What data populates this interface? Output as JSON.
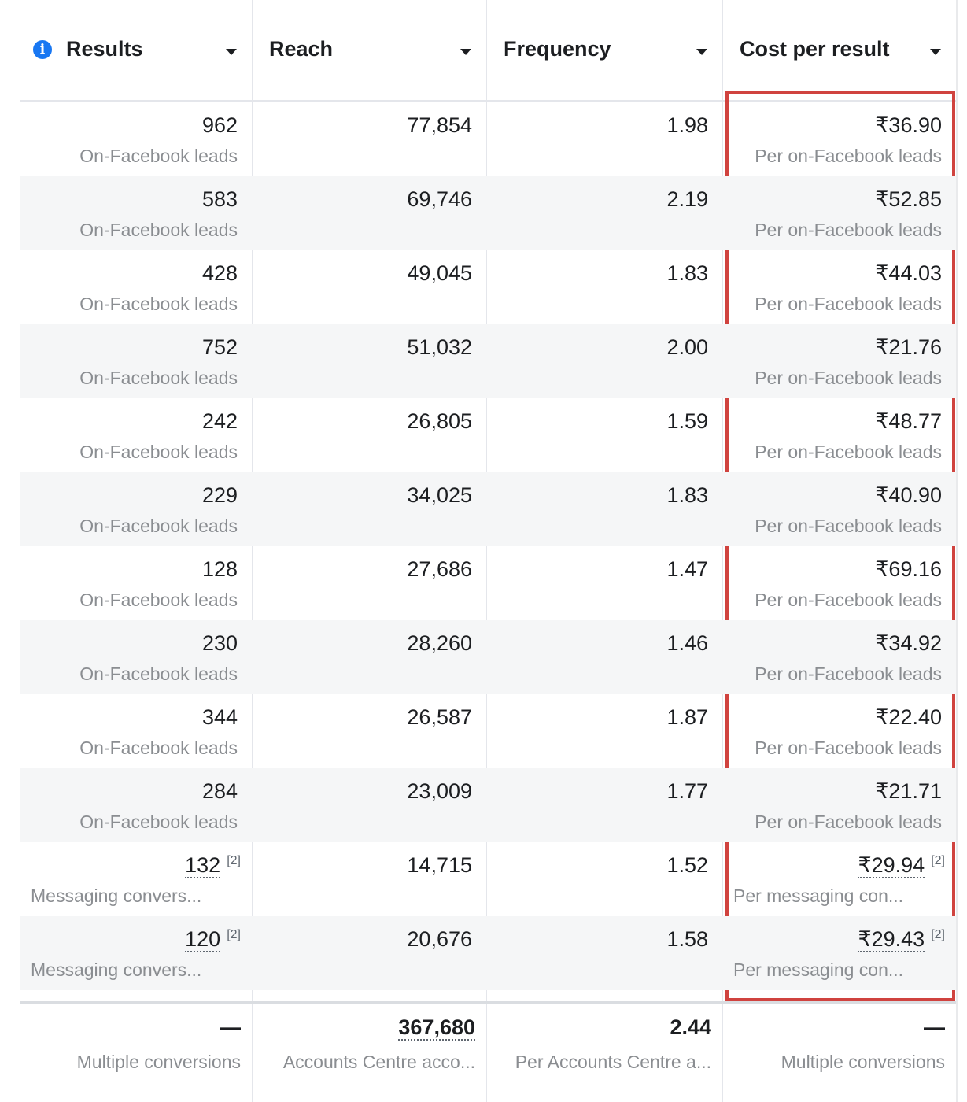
{
  "header": {
    "columns": [
      "Results",
      "Reach",
      "Frequency",
      "Cost per result"
    ]
  },
  "table": {
    "rows": [
      {
        "results": "962",
        "results_sub": "On-Facebook leads",
        "reach": "77,854",
        "frequency": "1.98",
        "cost": "₹36.90",
        "cost_sub": "Per on-Facebook leads"
      },
      {
        "results": "583",
        "results_sub": "On-Facebook leads",
        "reach": "69,746",
        "frequency": "2.19",
        "cost": "₹52.85",
        "cost_sub": "Per on-Facebook leads"
      },
      {
        "results": "428",
        "results_sub": "On-Facebook leads",
        "reach": "49,045",
        "frequency": "1.83",
        "cost": "₹44.03",
        "cost_sub": "Per on-Facebook leads"
      },
      {
        "results": "752",
        "results_sub": "On-Facebook leads",
        "reach": "51,032",
        "frequency": "2.00",
        "cost": "₹21.76",
        "cost_sub": "Per on-Facebook leads"
      },
      {
        "results": "242",
        "results_sub": "On-Facebook leads",
        "reach": "26,805",
        "frequency": "1.59",
        "cost": "₹48.77",
        "cost_sub": "Per on-Facebook leads"
      },
      {
        "results": "229",
        "results_sub": "On-Facebook leads",
        "reach": "34,025",
        "frequency": "1.83",
        "cost": "₹40.90",
        "cost_sub": "Per on-Facebook leads"
      },
      {
        "results": "128",
        "results_sub": "On-Facebook leads",
        "reach": "27,686",
        "frequency": "1.47",
        "cost": "₹69.16",
        "cost_sub": "Per on-Facebook leads"
      },
      {
        "results": "230",
        "results_sub": "On-Facebook leads",
        "reach": "28,260",
        "frequency": "1.46",
        "cost": "₹34.92",
        "cost_sub": "Per on-Facebook leads"
      },
      {
        "results": "344",
        "results_sub": "On-Facebook leads",
        "reach": "26,587",
        "frequency": "1.87",
        "cost": "₹22.40",
        "cost_sub": "Per on-Facebook leads"
      },
      {
        "results": "284",
        "results_sub": "On-Facebook leads",
        "reach": "23,009",
        "frequency": "1.77",
        "cost": "₹21.71",
        "cost_sub": "Per on-Facebook leads"
      },
      {
        "results": "132",
        "results_ref": "[2]",
        "results_sub": "Messaging convers...",
        "reach": "14,715",
        "frequency": "1.52",
        "cost": "₹29.94",
        "cost_ref": "[2]",
        "cost_sub": "Per messaging con..."
      },
      {
        "results": "120",
        "results_ref": "[2]",
        "results_sub": "Messaging convers...",
        "reach": "20,676",
        "frequency": "1.58",
        "cost": "₹29.43",
        "cost_ref": "[2]",
        "cost_sub": "Per messaging con..."
      }
    ]
  },
  "footer": {
    "results": "—",
    "results_sub": "Multiple conversions",
    "reach": "367,680",
    "reach_sub": "Accounts Centre acco...",
    "frequency": "2.44",
    "frequency_sub": "Per Accounts Centre a...",
    "cost": "—",
    "cost_sub": "Multiple conversions"
  }
}
